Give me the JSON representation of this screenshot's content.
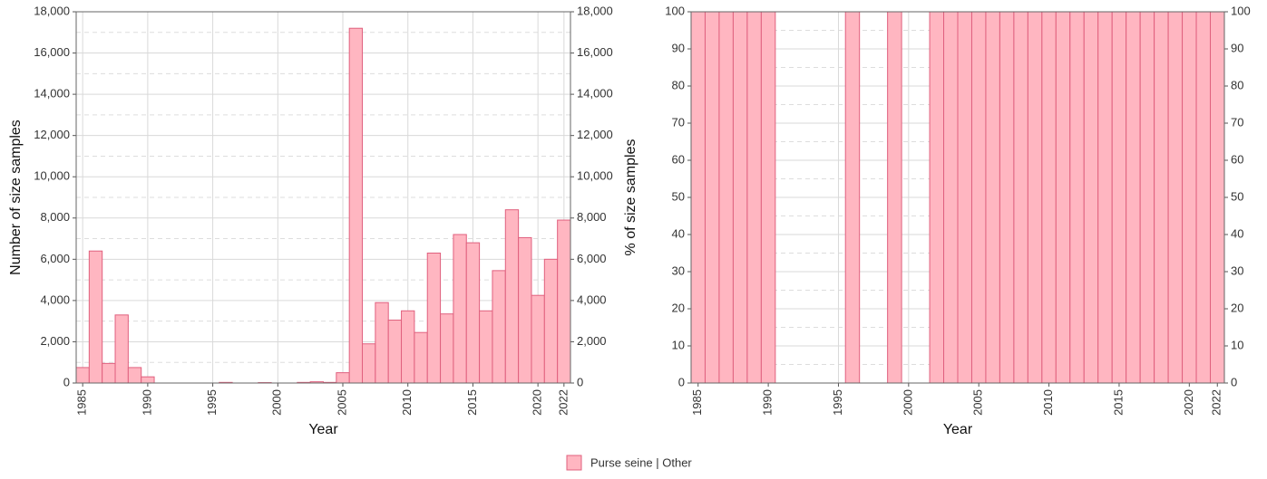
{
  "chart_data": [
    {
      "type": "bar",
      "y_title": "Number of size samples",
      "x_title": "Year",
      "x": [
        1985,
        1986,
        1987,
        1988,
        1989,
        1990,
        1991,
        1992,
        1993,
        1994,
        1995,
        1996,
        1997,
        1998,
        1999,
        2000,
        2001,
        2002,
        2003,
        2004,
        2005,
        2006,
        2007,
        2008,
        2009,
        2010,
        2011,
        2012,
        2013,
        2014,
        2015,
        2016,
        2017,
        2018,
        2019,
        2020,
        2021,
        2022
      ],
      "values": [
        750,
        6400,
        950,
        3300,
        750,
        300,
        0,
        0,
        0,
        0,
        0,
        30,
        0,
        0,
        20,
        0,
        0,
        30,
        60,
        30,
        500,
        17200,
        1900,
        3900,
        3050,
        3500,
        2450,
        6300,
        3350,
        7200,
        6800,
        3500,
        5450,
        8400,
        7050,
        4250,
        6000,
        7900
      ],
      "color": "#ffb6c1",
      "edge_color": "#e0607e",
      "xlim": [
        1984.5,
        2022.5
      ],
      "xticks": [
        1985,
        1990,
        1995,
        2000,
        2005,
        2010,
        2015,
        2020,
        2022
      ],
      "ylim": [
        0,
        18000
      ],
      "yticks": [
        0,
        {
          "value": 2000,
          "label": "2,000"
        },
        {
          "value": 4000,
          "label": "4,000"
        },
        {
          "value": 6000,
          "label": "6,000"
        },
        {
          "value": 8000,
          "label": "8,000"
        },
        {
          "value": 10000,
          "label": "10,000"
        },
        {
          "value": 12000,
          "label": "12,000"
        },
        {
          "value": 14000,
          "label": "14,000"
        },
        {
          "value": 16000,
          "label": "16,000"
        },
        {
          "value": 18000,
          "label": "18,000"
        }
      ],
      "minor_yticks": [
        1000,
        3000,
        5000,
        7000,
        9000,
        11000,
        13000,
        15000,
        17000
      ],
      "grid": true,
      "secondary_y_labels": true
    },
    {
      "type": "bar",
      "y_title": "% of size samples",
      "x_title": "Year",
      "x": [
        1985,
        1986,
        1987,
        1988,
        1989,
        1990,
        1991,
        1992,
        1993,
        1994,
        1995,
        1996,
        1997,
        1998,
        1999,
        2000,
        2001,
        2002,
        2003,
        2004,
        2005,
        2006,
        2007,
        2008,
        2009,
        2010,
        2011,
        2012,
        2013,
        2014,
        2015,
        2016,
        2017,
        2018,
        2019,
        2020,
        2021,
        2022
      ],
      "values": [
        100,
        100,
        100,
        100,
        100,
        100,
        null,
        null,
        null,
        null,
        null,
        100,
        null,
        null,
        100,
        null,
        null,
        100,
        100,
        100,
        100,
        100,
        100,
        100,
        100,
        100,
        100,
        100,
        100,
        100,
        100,
        100,
        100,
        100,
        100,
        100,
        100,
        100
      ],
      "color": "#ffb6c1",
      "edge_color": "#e0607e",
      "xlim": [
        1984.5,
        2022.5
      ],
      "xticks": [
        1985,
        1990,
        1995,
        2000,
        2005,
        2010,
        2015,
        2020,
        2022
      ],
      "ylim": [
        0,
        100
      ],
      "yticks": [
        0,
        10,
        20,
        30,
        40,
        50,
        60,
        70,
        80,
        90,
        100
      ],
      "minor_yticks": [
        5,
        15,
        25,
        35,
        45,
        55,
        65,
        75,
        85,
        95
      ],
      "grid": true,
      "secondary_y_labels": true
    }
  ],
  "legend": {
    "name": "Purse seine | Other",
    "color": "#ffb6c1",
    "edge_color": "#e0607e"
  }
}
